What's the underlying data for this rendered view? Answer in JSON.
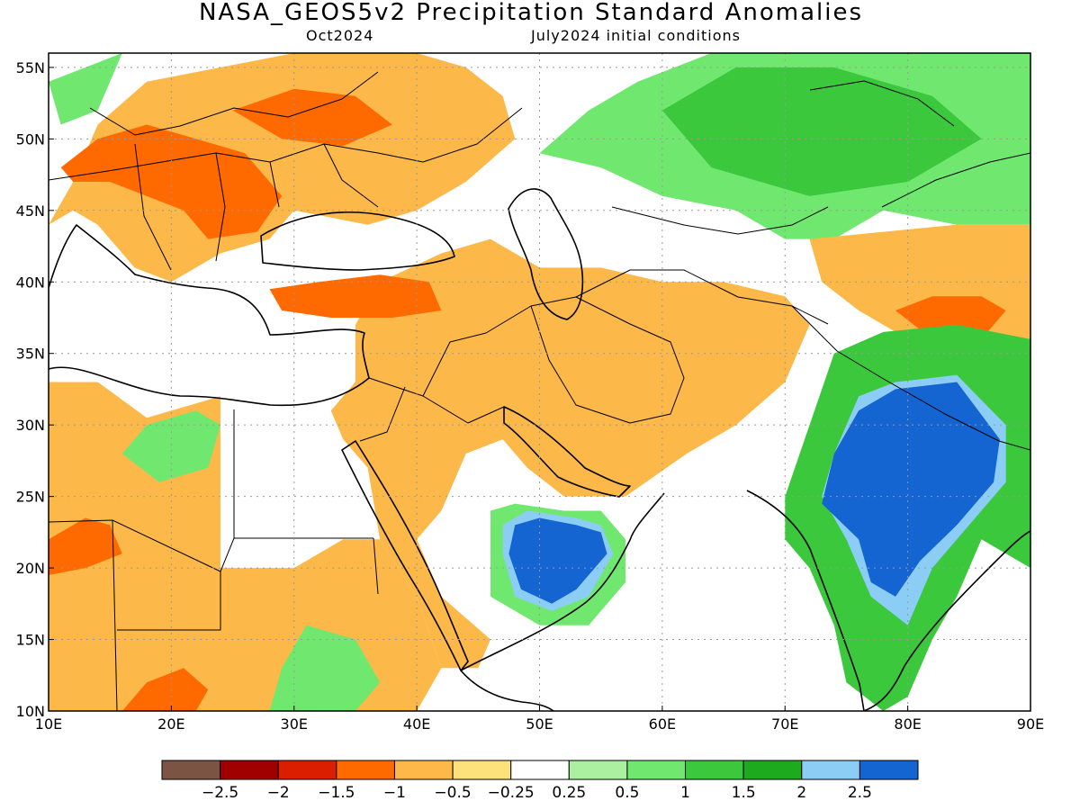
{
  "header": {
    "title": "NASA_GEOS5v2 Precipitation Standard Anomalies",
    "month": "Oct2024",
    "conditions": "July2024 initial conditions"
  },
  "map": {
    "lon_range": [
      10,
      90
    ],
    "lat_range": [
      10,
      56
    ],
    "lon_ticks": [
      {
        "value": 10,
        "label": "10E"
      },
      {
        "value": 20,
        "label": "20E"
      },
      {
        "value": 30,
        "label": "30E"
      },
      {
        "value": 40,
        "label": "40E"
      },
      {
        "value": 50,
        "label": "50E"
      },
      {
        "value": 60,
        "label": "60E"
      },
      {
        "value": 70,
        "label": "70E"
      },
      {
        "value": 80,
        "label": "80E"
      },
      {
        "value": 90,
        "label": "90E"
      }
    ],
    "lat_ticks": [
      {
        "value": 10,
        "label": "10N"
      },
      {
        "value": 15,
        "label": "15N"
      },
      {
        "value": 20,
        "label": "20N"
      },
      {
        "value": 25,
        "label": "25N"
      },
      {
        "value": 30,
        "label": "30N"
      },
      {
        "value": 35,
        "label": "35N"
      },
      {
        "value": 40,
        "label": "40N"
      },
      {
        "value": 45,
        "label": "45N"
      },
      {
        "value": 50,
        "label": "50N"
      },
      {
        "value": 55,
        "label": "55N"
      }
    ],
    "grid": true
  },
  "colorbar": {
    "colors": [
      "#7b5443",
      "#a00000",
      "#dc1e00",
      "#ff6a00",
      "#fcb848",
      "#fde17a",
      "#ffffff",
      "#aaf0a0",
      "#70e870",
      "#3cc83c",
      "#1eaa1e",
      "#8ccdf5",
      "#1464d2"
    ],
    "labels": [
      "−2.5",
      "−2",
      "−1.5",
      "−1",
      "−0.5",
      "−0.25",
      "0.25",
      "0.5",
      "1",
      "1.5",
      "2",
      "2.5"
    ]
  },
  "anomaly_regions": [
    {
      "name": "europe-dry",
      "color": "#fcb848",
      "poly": [
        [
          10,
          44
        ],
        [
          12,
          47
        ],
        [
          14,
          51
        ],
        [
          18,
          54
        ],
        [
          24,
          55
        ],
        [
          30,
          56
        ],
        [
          40,
          56
        ],
        [
          44,
          55
        ],
        [
          47,
          53
        ],
        [
          48,
          50
        ],
        [
          44,
          47
        ],
        [
          40,
          45
        ],
        [
          36,
          44
        ],
        [
          30,
          45
        ],
        [
          28,
          43
        ],
        [
          24,
          42
        ],
        [
          20,
          40
        ],
        [
          17,
          41
        ],
        [
          14,
          44
        ],
        [
          12,
          45
        ]
      ]
    },
    {
      "name": "europe-core",
      "color": "#ff6a00",
      "poly": [
        [
          11,
          48
        ],
        [
          14,
          50
        ],
        [
          18,
          51
        ],
        [
          22,
          50
        ],
        [
          26,
          49
        ],
        [
          29,
          46
        ],
        [
          27,
          43.5
        ],
        [
          23,
          43
        ],
        [
          21,
          45
        ],
        [
          18,
          46
        ],
        [
          15,
          47
        ],
        [
          12,
          47
        ]
      ]
    },
    {
      "name": "europe-north",
      "color": "#ff6a00",
      "poly": [
        [
          25,
          52
        ],
        [
          30,
          53.5
        ],
        [
          35,
          53
        ],
        [
          38,
          51
        ],
        [
          34,
          49.5
        ],
        [
          29,
          50
        ]
      ]
    },
    {
      "name": "baltic-green",
      "color": "#70e870",
      "poly": [
        [
          10,
          54
        ],
        [
          13,
          55
        ],
        [
          16,
          56
        ],
        [
          14,
          52
        ],
        [
          11,
          51
        ]
      ]
    },
    {
      "name": "north-africa-dry",
      "color": "#fcb848",
      "poly": [
        [
          10,
          33
        ],
        [
          14,
          33
        ],
        [
          18,
          30.5
        ],
        [
          20,
          31
        ],
        [
          24,
          32
        ],
        [
          24,
          20
        ],
        [
          30,
          20
        ],
        [
          34,
          22
        ],
        [
          37,
          22
        ],
        [
          40,
          18
        ],
        [
          42,
          13
        ],
        [
          40,
          10
        ],
        [
          10,
          10
        ]
      ]
    },
    {
      "name": "sahel-core",
      "color": "#ff6a00",
      "poly": [
        [
          10,
          22
        ],
        [
          13,
          23.5
        ],
        [
          15,
          23
        ],
        [
          16,
          21
        ],
        [
          13,
          20
        ],
        [
          10,
          19.5
        ]
      ]
    },
    {
      "name": "sahel-core-2",
      "color": "#ff6a00",
      "poly": [
        [
          16,
          10
        ],
        [
          18,
          12
        ],
        [
          21,
          13
        ],
        [
          23,
          11.5
        ],
        [
          22,
          10
        ]
      ]
    },
    {
      "name": "libya-green",
      "color": "#70e870",
      "poly": [
        [
          16,
          28
        ],
        [
          18,
          30
        ],
        [
          22,
          31
        ],
        [
          24,
          30
        ],
        [
          23,
          27
        ],
        [
          19,
          26
        ]
      ]
    },
    {
      "name": "sudan-green",
      "color": "#70e870",
      "poly": [
        [
          28,
          10
        ],
        [
          29,
          13
        ],
        [
          31,
          16
        ],
        [
          35,
          15
        ],
        [
          37,
          12
        ],
        [
          35,
          10
        ]
      ]
    },
    {
      "name": "middle-east-dry",
      "color": "#fcb848",
      "poly": [
        [
          35,
          37
        ],
        [
          37,
          40
        ],
        [
          42,
          42
        ],
        [
          46,
          43
        ],
        [
          50,
          41
        ],
        [
          55,
          41
        ],
        [
          60,
          40
        ],
        [
          65,
          40
        ],
        [
          70,
          39
        ],
        [
          72,
          37
        ],
        [
          70,
          33
        ],
        [
          66,
          30
        ],
        [
          62,
          28
        ],
        [
          57,
          25
        ],
        [
          52,
          25
        ],
        [
          49,
          27
        ],
        [
          47,
          29
        ],
        [
          44,
          28
        ],
        [
          42,
          24
        ],
        [
          40,
          22
        ],
        [
          42,
          18
        ],
        [
          46,
          15
        ],
        [
          45,
          13
        ],
        [
          42,
          13
        ],
        [
          40,
          18
        ],
        [
          37,
          22
        ],
        [
          36,
          27
        ],
        [
          34,
          29
        ],
        [
          33,
          31
        ],
        [
          35,
          33
        ]
      ]
    },
    {
      "name": "turkey-core",
      "color": "#ff6a00",
      "poly": [
        [
          28,
          39.5
        ],
        [
          32,
          40
        ],
        [
          37,
          40.5
        ],
        [
          41,
          40
        ],
        [
          42,
          38
        ],
        [
          38,
          37.5
        ],
        [
          33,
          37.5
        ],
        [
          29,
          38
        ]
      ]
    },
    {
      "name": "arabia-green",
      "color": "#70e870",
      "poly": [
        [
          46,
          22
        ],
        [
          46,
          24
        ],
        [
          48,
          24.5
        ],
        [
          52,
          24
        ],
        [
          55,
          24
        ],
        [
          57,
          22
        ],
        [
          57,
          19
        ],
        [
          54,
          16
        ],
        [
          50,
          16
        ],
        [
          46,
          18
        ]
      ]
    },
    {
      "name": "arabia-blue-border",
      "color": "#8ccdf5",
      "poly": [
        [
          47,
          21
        ],
        [
          47,
          23
        ],
        [
          49,
          24
        ],
        [
          53,
          23.5
        ],
        [
          55,
          23
        ],
        [
          56,
          21
        ],
        [
          54,
          18
        ],
        [
          51,
          17
        ],
        [
          48,
          18
        ]
      ]
    },
    {
      "name": "arabia-blue",
      "color": "#1464d2",
      "poly": [
        [
          47.5,
          21
        ],
        [
          48,
          23
        ],
        [
          50,
          23.5
        ],
        [
          53,
          23
        ],
        [
          55,
          22.5
        ],
        [
          55.5,
          21
        ],
        [
          53,
          18.5
        ],
        [
          51,
          17.5
        ],
        [
          48.5,
          18.5
        ]
      ]
    },
    {
      "name": "central-asia-green",
      "color": "#70e870",
      "poly": [
        [
          50,
          49
        ],
        [
          54,
          52
        ],
        [
          58,
          54
        ],
        [
          64,
          56
        ],
        [
          90,
          56
        ],
        [
          90,
          44
        ],
        [
          84,
          44
        ],
        [
          78,
          45
        ],
        [
          74,
          43
        ],
        [
          70,
          43
        ],
        [
          66,
          45
        ],
        [
          60,
          46
        ],
        [
          55,
          48
        ]
      ]
    },
    {
      "name": "central-asia-core",
      "color": "#3cc83c",
      "poly": [
        [
          60,
          52
        ],
        [
          66,
          55
        ],
        [
          74,
          55
        ],
        [
          82,
          53
        ],
        [
          86,
          50
        ],
        [
          80,
          47
        ],
        [
          72,
          46
        ],
        [
          64,
          48
        ]
      ]
    },
    {
      "name": "kazakh-dry",
      "color": "#fcb848",
      "poly": [
        [
          72,
          43
        ],
        [
          78,
          43.5
        ],
        [
          84,
          44
        ],
        [
          90,
          44
        ],
        [
          90,
          35
        ],
        [
          85,
          35
        ],
        [
          80,
          36
        ],
        [
          76,
          38
        ],
        [
          73,
          40
        ]
      ]
    },
    {
      "name": "kazakh-core",
      "color": "#ff6a00",
      "poly": [
        [
          79,
          38
        ],
        [
          82,
          39
        ],
        [
          86,
          39
        ],
        [
          88,
          38
        ],
        [
          86,
          36
        ],
        [
          82,
          36
        ]
      ]
    },
    {
      "name": "india-green",
      "color": "#3cc83c",
      "poly": [
        [
          70,
          25
        ],
        [
          72,
          30
        ],
        [
          74,
          35
        ],
        [
          78,
          36.5
        ],
        [
          84,
          37
        ],
        [
          90,
          36
        ],
        [
          90,
          20
        ],
        [
          86,
          22
        ],
        [
          84,
          18
        ],
        [
          82,
          15
        ],
        [
          80,
          11
        ],
        [
          78,
          10
        ],
        [
          75,
          12
        ],
        [
          74,
          16
        ],
        [
          72,
          20
        ],
        [
          70,
          22
        ]
      ]
    },
    {
      "name": "india-light-blue",
      "color": "#8ccdf5",
      "poly": [
        [
          74,
          28
        ],
        [
          76,
          32
        ],
        [
          79,
          33
        ],
        [
          84,
          33.5
        ],
        [
          88,
          30
        ],
        [
          88,
          26
        ],
        [
          85,
          23
        ],
        [
          82,
          20
        ],
        [
          80,
          16
        ],
        [
          77,
          18
        ],
        [
          75,
          22
        ],
        [
          73,
          25
        ]
      ]
    },
    {
      "name": "india-blue",
      "color": "#1464d2",
      "poly": [
        [
          74,
          28
        ],
        [
          76,
          31
        ],
        [
          79,
          32.5
        ],
        [
          84,
          33
        ],
        [
          87.5,
          29
        ],
        [
          87,
          26
        ],
        [
          84,
          23
        ],
        [
          81,
          20.5
        ],
        [
          79,
          18
        ],
        [
          77,
          19
        ],
        [
          76,
          22
        ],
        [
          73,
          24.5
        ]
      ]
    }
  ]
}
